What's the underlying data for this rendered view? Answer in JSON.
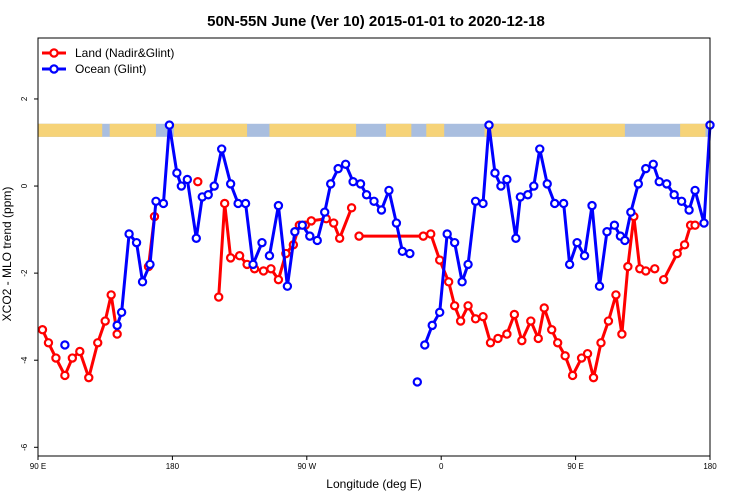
{
  "chart_data": {
    "type": "line",
    "title": "50N-55N June (Ver 10)   2015-01-01 to 2020-12-18",
    "xlabel": "Longitude (deg E)",
    "ylabel": "XCO2 - MLO trend (ppm)",
    "x_tick_values": [
      90,
      180,
      270,
      360,
      450,
      540
    ],
    "x_tick_labels": [
      "90 E",
      "180",
      "90 W",
      "0",
      "90 E",
      "180"
    ],
    "y_tick_values": [
      -6,
      -4,
      -2,
      0,
      2
    ],
    "y_tick_labels": [
      "-6",
      "-4",
      "-2",
      "0",
      "2"
    ],
    "xlim": [
      90,
      540
    ],
    "ylim": [
      -6.2,
      3.4
    ],
    "grid": false,
    "legend_position": "top-left",
    "land_ocean_strip": {
      "y_center": 1.28,
      "height": 0.3,
      "land_color": "#f6d378",
      "ocean_color": "#a9bedf"
    },
    "series": [
      {
        "name": "Land (Nadir&Glint)",
        "color": "#ff0000",
        "x": [
          93,
          97,
          102,
          108,
          113,
          118,
          124,
          130,
          135,
          139,
          143,
          164,
          168,
          197,
          211,
          215,
          219,
          225,
          230,
          235,
          241,
          246,
          251,
          256,
          261,
          265,
          269,
          273,
          283,
          288,
          292,
          300,
          305,
          348,
          353,
          359,
          365,
          369,
          373,
          378,
          383,
          388,
          393,
          398,
          404,
          409,
          414,
          420,
          425,
          429,
          434,
          438,
          443,
          448,
          454,
          458,
          462,
          467,
          472,
          477,
          481,
          485,
          489,
          493,
          497,
          503,
          509,
          518,
          523,
          527,
          530
        ],
        "y": [
          -3.3,
          -3.6,
          -3.95,
          -4.35,
          -3.95,
          -3.8,
          -4.4,
          -3.6,
          -3.1,
          -2.5,
          -3.4,
          -1.85,
          -0.7,
          0.1,
          -2.55,
          -0.4,
          -1.65,
          -1.6,
          -1.8,
          -1.9,
          -1.95,
          -1.9,
          -2.15,
          -1.55,
          -1.35,
          -0.9,
          -0.9,
          -0.8,
          -0.75,
          -0.85,
          -1.2,
          -0.5,
          -1.15,
          -1.15,
          -1.1,
          -1.7,
          -2.2,
          -2.75,
          -3.1,
          -2.75,
          -3.05,
          -3.0,
          -3.6,
          -3.5,
          -3.4,
          -2.95,
          -3.55,
          -3.1,
          -3.5,
          -2.8,
          -3.3,
          -3.6,
          -3.9,
          -4.35,
          -3.95,
          -3.85,
          -4.4,
          -3.6,
          -3.1,
          -2.5,
          -3.4,
          -1.85,
          -0.7,
          -1.9,
          -1.95,
          -1.9,
          -2.15,
          -1.55,
          -1.35,
          -0.9,
          -0.9
        ],
        "segment_breaks": [
          11,
          13,
          14,
          32,
          34,
          66
        ]
      },
      {
        "name": "Ocean (Glint)",
        "color": "#0000ff",
        "x": [
          108,
          143,
          146,
          151,
          156,
          160,
          165,
          169,
          174,
          178,
          183,
          186,
          190,
          196,
          200,
          204,
          208,
          213,
          219,
          224,
          229,
          234,
          240,
          245,
          251,
          257,
          262,
          267,
          272,
          277,
          282,
          286,
          291,
          296,
          301,
          306,
          310,
          315,
          320,
          325,
          330,
          334,
          339,
          344,
          349,
          354,
          359,
          364,
          369,
          374,
          378,
          383,
          388,
          392,
          396,
          400,
          404,
          410,
          413,
          418,
          422,
          426,
          431,
          436,
          442,
          446,
          451,
          456,
          461,
          466,
          471,
          476,
          480,
          483,
          487,
          492,
          497,
          502,
          506,
          511,
          516,
          521,
          526,
          530,
          536,
          540
        ],
        "y": [
          -3.65,
          -3.2,
          -2.9,
          -1.1,
          -1.3,
          -2.2,
          -1.8,
          -0.35,
          -0.4,
          1.4,
          0.3,
          0.0,
          0.15,
          -1.2,
          -0.25,
          -0.2,
          0.0,
          0.85,
          0.05,
          -0.4,
          -0.4,
          -1.8,
          -1.3,
          -1.6,
          -0.45,
          -2.3,
          -1.05,
          -0.9,
          -1.15,
          -1.25,
          -0.6,
          0.05,
          0.4,
          0.5,
          0.1,
          0.05,
          -0.2,
          -0.35,
          -0.55,
          -0.1,
          -0.85,
          -1.5,
          -1.55,
          -4.5,
          -3.65,
          -3.2,
          -2.9,
          -1.1,
          -1.3,
          -2.2,
          -1.8,
          -0.35,
          -0.4,
          1.4,
          0.3,
          0.0,
          0.15,
          -1.2,
          -0.25,
          -0.2,
          0.0,
          0.85,
          0.05,
          -0.4,
          -0.4,
          -1.8,
          -1.3,
          -1.6,
          -0.45,
          -2.3,
          -1.05,
          -0.9,
          -1.15,
          -1.25,
          -0.6,
          0.05,
          0.4,
          0.5,
          0.1,
          0.05,
          -0.2,
          -0.35,
          -0.55,
          -0.1,
          -0.85,
          1.4
        ],
        "segment_breaks": [
          1,
          23,
          43,
          44
        ]
      }
    ]
  }
}
